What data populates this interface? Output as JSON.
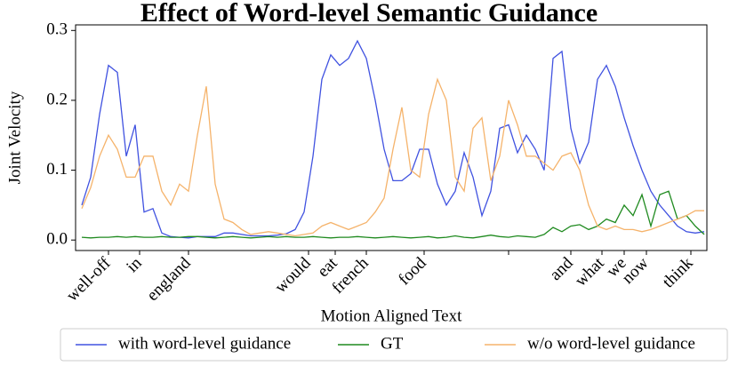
{
  "chart_data": {
    "type": "line",
    "title": "Effect of Word-level Semantic Guidance",
    "xlabel": "Motion Aligned Text",
    "ylabel": "Joint Velocity",
    "legend": "bottom",
    "x": [
      0,
      2,
      4,
      6,
      8,
      10,
      12,
      14,
      16,
      18,
      20,
      22,
      24,
      26,
      28,
      30,
      32,
      34,
      36,
      38,
      40,
      42,
      44,
      46,
      48,
      50,
      52,
      54,
      56,
      58,
      60,
      62,
      64,
      66,
      68,
      70,
      72,
      74,
      76,
      78,
      80,
      82,
      84,
      86,
      88,
      90,
      92,
      94,
      96,
      98,
      100,
      102,
      104,
      106,
      108,
      110,
      112,
      114,
      116,
      118,
      120,
      122,
      124,
      126,
      128,
      130,
      132,
      134,
      136,
      138,
      140
    ],
    "xlim": [
      -1.4,
      140.6
    ],
    "ylim": [
      -0.015,
      0.308
    ],
    "yticks": [
      {
        "value": 0,
        "label": "0.0"
      },
      0.1,
      0.2,
      0.3
    ],
    "xticks": [
      {
        "value": 6,
        "label": "well-off"
      },
      {
        "value": 13,
        "label": "in"
      },
      {
        "value": 24,
        "label": "england"
      },
      {
        "value": 51,
        "label": "would"
      },
      {
        "value": 57,
        "label": "eat"
      },
      {
        "value": 64,
        "label": "french",
        "color": "#ff0000"
      },
      {
        "value": 77,
        "label": "food"
      },
      {
        "value": 96,
        "label": null
      },
      {
        "value": 110,
        "label": "and"
      },
      {
        "value": 117,
        "label": "what"
      },
      {
        "value": 122,
        "label": "we"
      },
      {
        "value": 127,
        "label": "now",
        "color": "#ff0000"
      },
      {
        "value": 137,
        "label": "think"
      }
    ],
    "series": [
      {
        "name": "with word-level guidance",
        "color": "#4052e0",
        "values": [
          0.05,
          0.09,
          0.18,
          0.25,
          0.24,
          0.12,
          0.165,
          0.04,
          0.045,
          0.01,
          0.005,
          0.004,
          0.003,
          0.005,
          0.005,
          0.005,
          0.01,
          0.01,
          0.008,
          0.006,
          0.006,
          0.006,
          0.007,
          0.009,
          0.015,
          0.04,
          0.12,
          0.23,
          0.265,
          0.25,
          0.26,
          0.285,
          0.26,
          0.2,
          0.13,
          0.085,
          0.085,
          0.095,
          0.13,
          0.13,
          0.08,
          0.05,
          0.07,
          0.125,
          0.09,
          0.035,
          0.07,
          0.16,
          0.165,
          0.125,
          0.15,
          0.13,
          0.1,
          0.26,
          0.27,
          0.16,
          0.11,
          0.14,
          0.23,
          0.25,
          0.22,
          0.175,
          0.135,
          0.1,
          0.07,
          0.05,
          0.035,
          0.02,
          0.012,
          0.01,
          0.012
        ]
      },
      {
        "name": "GT",
        "color": "#1f8a1f",
        "values": [
          0.004,
          0.003,
          0.004,
          0.004,
          0.005,
          0.004,
          0.005,
          0.004,
          0.004,
          0.005,
          0.004,
          0.004,
          0.005,
          0.005,
          0.004,
          0.003,
          0.004,
          0.005,
          0.004,
          0.003,
          0.004,
          0.005,
          0.004,
          0.005,
          0.004,
          0.004,
          0.005,
          0.004,
          0.003,
          0.004,
          0.004,
          0.005,
          0.004,
          0.003,
          0.004,
          0.005,
          0.004,
          0.003,
          0.004,
          0.005,
          0.003,
          0.004,
          0.006,
          0.004,
          0.003,
          0.005,
          0.007,
          0.005,
          0.004,
          0.006,
          0.005,
          0.004,
          0.008,
          0.018,
          0.012,
          0.02,
          0.022,
          0.015,
          0.02,
          0.03,
          0.025,
          0.05,
          0.035,
          0.065,
          0.02,
          0.065,
          0.07,
          0.03,
          0.035,
          0.02,
          0.008
        ]
      },
      {
        "name": "w/o word-level guidance",
        "color": "#f5b36b",
        "values": [
          0.045,
          0.075,
          0.12,
          0.15,
          0.13,
          0.09,
          0.09,
          0.12,
          0.12,
          0.07,
          0.05,
          0.08,
          0.07,
          0.15,
          0.22,
          0.08,
          0.03,
          0.025,
          0.015,
          0.008,
          0.01,
          0.012,
          0.01,
          0.008,
          0.006,
          0.008,
          0.01,
          0.02,
          0.025,
          0.02,
          0.015,
          0.02,
          0.025,
          0.04,
          0.06,
          0.13,
          0.19,
          0.1,
          0.09,
          0.18,
          0.23,
          0.2,
          0.09,
          0.07,
          0.16,
          0.175,
          0.085,
          0.12,
          0.2,
          0.165,
          0.12,
          0.12,
          0.11,
          0.1,
          0.12,
          0.125,
          0.1,
          0.05,
          0.02,
          0.015,
          0.02,
          0.015,
          0.015,
          0.012,
          0.015,
          0.02,
          0.025,
          0.03,
          0.035,
          0.042,
          0.042
        ]
      }
    ]
  }
}
